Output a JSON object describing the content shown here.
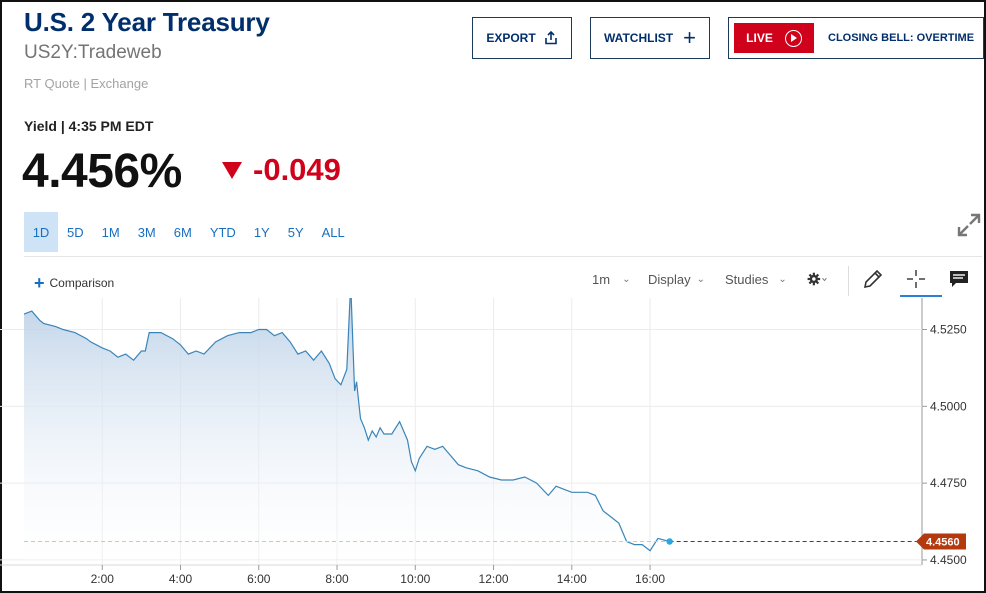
{
  "header": {
    "title": "U.S. 2 Year Treasury",
    "symbol": "US2Y:Tradeweb",
    "quote_source": "RT Quote | Exchange"
  },
  "actions": {
    "export_label": "EXPORT",
    "watchlist_label": "WATCHLIST",
    "watchlist_icon": "+",
    "live_label": "LIVE",
    "live_show": "CLOSING BELL: OVERTIME"
  },
  "quote": {
    "yield_label": "Yield | 4:35 PM EDT",
    "price": "4.456%",
    "change": "-0.049",
    "change_color": "#d0021b",
    "direction": "down"
  },
  "ranges": {
    "items": [
      "1D",
      "5D",
      "1M",
      "3M",
      "6M",
      "YTD",
      "1Y",
      "5Y",
      "ALL"
    ],
    "active": "1D"
  },
  "toolbar": {
    "comparison_label": "Comparison",
    "interval_label": "1m",
    "display_label": "Display",
    "studies_label": "Studies",
    "icons": [
      "gear-icon",
      "pencil-icon",
      "crosshair-icon",
      "comment-icon"
    ]
  },
  "chart_data": {
    "type": "area",
    "x_ticks": [
      "2:00",
      "4:00",
      "6:00",
      "8:00",
      "10:00",
      "12:00",
      "14:00",
      "16:00"
    ],
    "y_ticks": [
      "4.5250",
      "4.5000",
      "4.4750",
      "4.4500"
    ],
    "ylim": [
      4.449,
      4.532
    ],
    "xlim_hours": [
      0.0,
      22.95
    ],
    "last_price_label": "4.4560",
    "last_value": 4.456,
    "line_color": "#3a85b8",
    "fill_color_top": "#b9cfe6",
    "last_marker_color": "#2aa7e0",
    "last_line_color": "#d0021b",
    "series": [
      {
        "x": [
          0.0,
          0.2,
          0.4,
          0.5,
          0.8,
          1.0,
          1.3,
          1.6,
          1.7,
          2.0,
          2.2,
          2.4,
          2.6,
          2.8,
          3.0,
          3.1,
          3.2,
          3.5,
          3.8,
          4.0,
          4.2,
          4.4,
          4.6,
          4.9,
          5.2,
          5.5,
          5.8,
          6.0,
          6.2,
          6.4,
          6.6,
          6.8,
          7.0,
          7.2,
          7.4,
          7.6,
          7.8,
          7.95,
          8.1,
          8.25,
          8.35,
          8.45,
          8.5,
          8.55,
          8.6,
          8.7,
          8.8,
          8.9,
          9.0,
          9.1,
          9.2,
          9.4,
          9.6,
          9.8,
          9.9,
          10.0,
          10.1,
          10.2,
          10.3,
          10.5,
          10.7,
          10.9,
          11.1,
          11.3,
          11.6,
          11.9,
          12.2,
          12.5,
          12.8,
          13.1,
          13.4,
          13.6,
          13.8,
          14.0,
          14.2,
          14.4,
          14.6,
          14.8,
          15.0,
          15.2,
          15.4,
          15.6,
          15.8,
          16.0,
          16.2,
          16.5
        ],
        "values": [
          4.53,
          4.531,
          4.528,
          4.527,
          4.526,
          4.525,
          4.524,
          4.522,
          4.521,
          4.519,
          4.518,
          4.516,
          4.517,
          4.515,
          4.518,
          4.518,
          4.524,
          4.524,
          4.522,
          4.52,
          4.517,
          4.518,
          4.517,
          4.521,
          4.523,
          4.524,
          4.524,
          4.525,
          4.525,
          4.523,
          4.524,
          4.521,
          4.517,
          4.518,
          4.515,
          4.518,
          4.514,
          4.509,
          4.507,
          4.512,
          4.54,
          4.505,
          4.508,
          4.502,
          4.496,
          4.493,
          4.489,
          4.492,
          4.49,
          4.493,
          4.491,
          4.491,
          4.495,
          4.489,
          4.482,
          4.479,
          4.483,
          4.485,
          4.487,
          4.486,
          4.487,
          4.484,
          4.481,
          4.48,
          4.479,
          4.477,
          4.476,
          4.476,
          4.477,
          4.475,
          4.471,
          4.474,
          4.473,
          4.472,
          4.472,
          4.472,
          4.471,
          4.466,
          4.464,
          4.462,
          4.456,
          4.455,
          4.455,
          4.453,
          4.457,
          4.456
        ]
      }
    ]
  }
}
